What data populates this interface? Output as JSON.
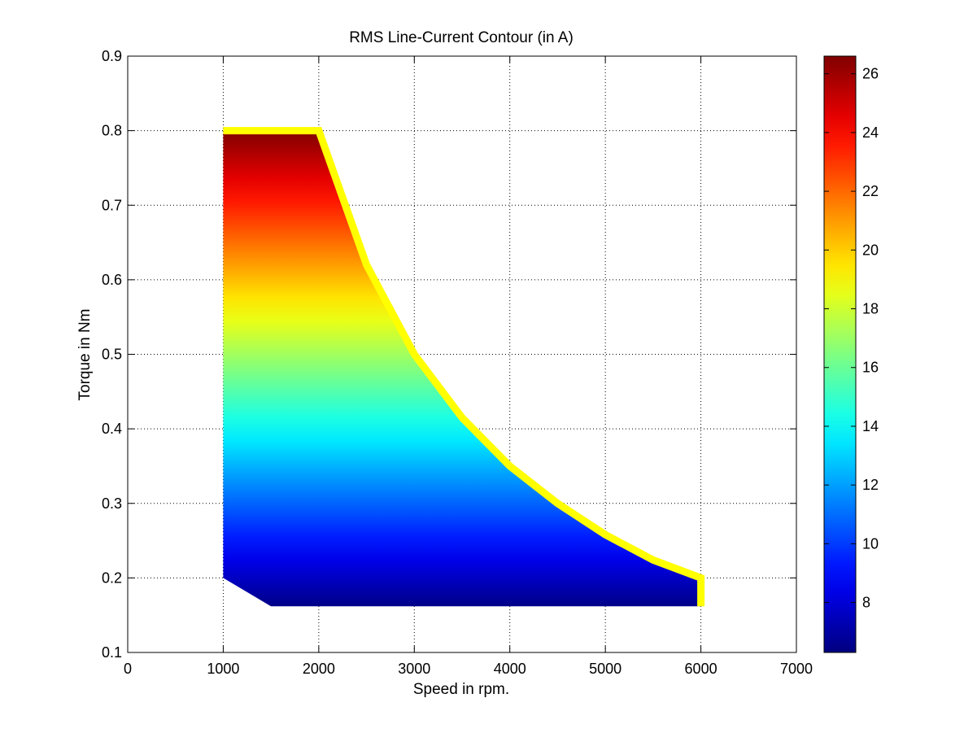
{
  "chart_data": {
    "type": "heatmap",
    "title": "RMS Line-Current Contour (in A)",
    "xlabel": "Speed in rpm.",
    "ylabel": "Torque in Nm",
    "xlim": [
      0,
      7000
    ],
    "ylim": [
      0.1,
      0.9
    ],
    "x_ticks": [
      0,
      1000,
      2000,
      3000,
      4000,
      5000,
      6000,
      7000
    ],
    "y_ticks": [
      0.1,
      0.2,
      0.3,
      0.4,
      0.5,
      0.6,
      0.7,
      0.8,
      0.9
    ],
    "grid": true,
    "colormap": "jet",
    "colorbar": {
      "range": [
        6.3,
        26.6
      ],
      "ticks": [
        8,
        10,
        12,
        14,
        16,
        18,
        20,
        22,
        24,
        26
      ]
    },
    "region": {
      "lower_boundary": [
        [
          1000,
          0.2
        ],
        [
          1500,
          0.162
        ],
        [
          6000,
          0.162
        ]
      ],
      "upper_boundary": [
        [
          1000,
          0.8
        ],
        [
          2000,
          0.8
        ],
        [
          2500,
          0.62
        ],
        [
          3000,
          0.5
        ],
        [
          3500,
          0.415
        ],
        [
          4000,
          0.35
        ],
        [
          4500,
          0.3
        ],
        [
          5000,
          0.258
        ],
        [
          5500,
          0.224
        ],
        [
          6000,
          0.2
        ],
        [
          6000,
          0.162
        ]
      ],
      "boundary_color": "#ffff00",
      "current_at_torque": [
        [
          0.16,
          6.4
        ],
        [
          0.8,
          26.6
        ]
      ]
    },
    "series": [
      {
        "speed": [
          1000,
          2000,
          2500,
          3000,
          3500,
          4000,
          4500,
          5000,
          5500,
          6000
        ],
        "max_torque": [
          0.8,
          0.8,
          0.62,
          0.5,
          0.415,
          0.35,
          0.3,
          0.258,
          0.224,
          0.2
        ]
      }
    ]
  }
}
